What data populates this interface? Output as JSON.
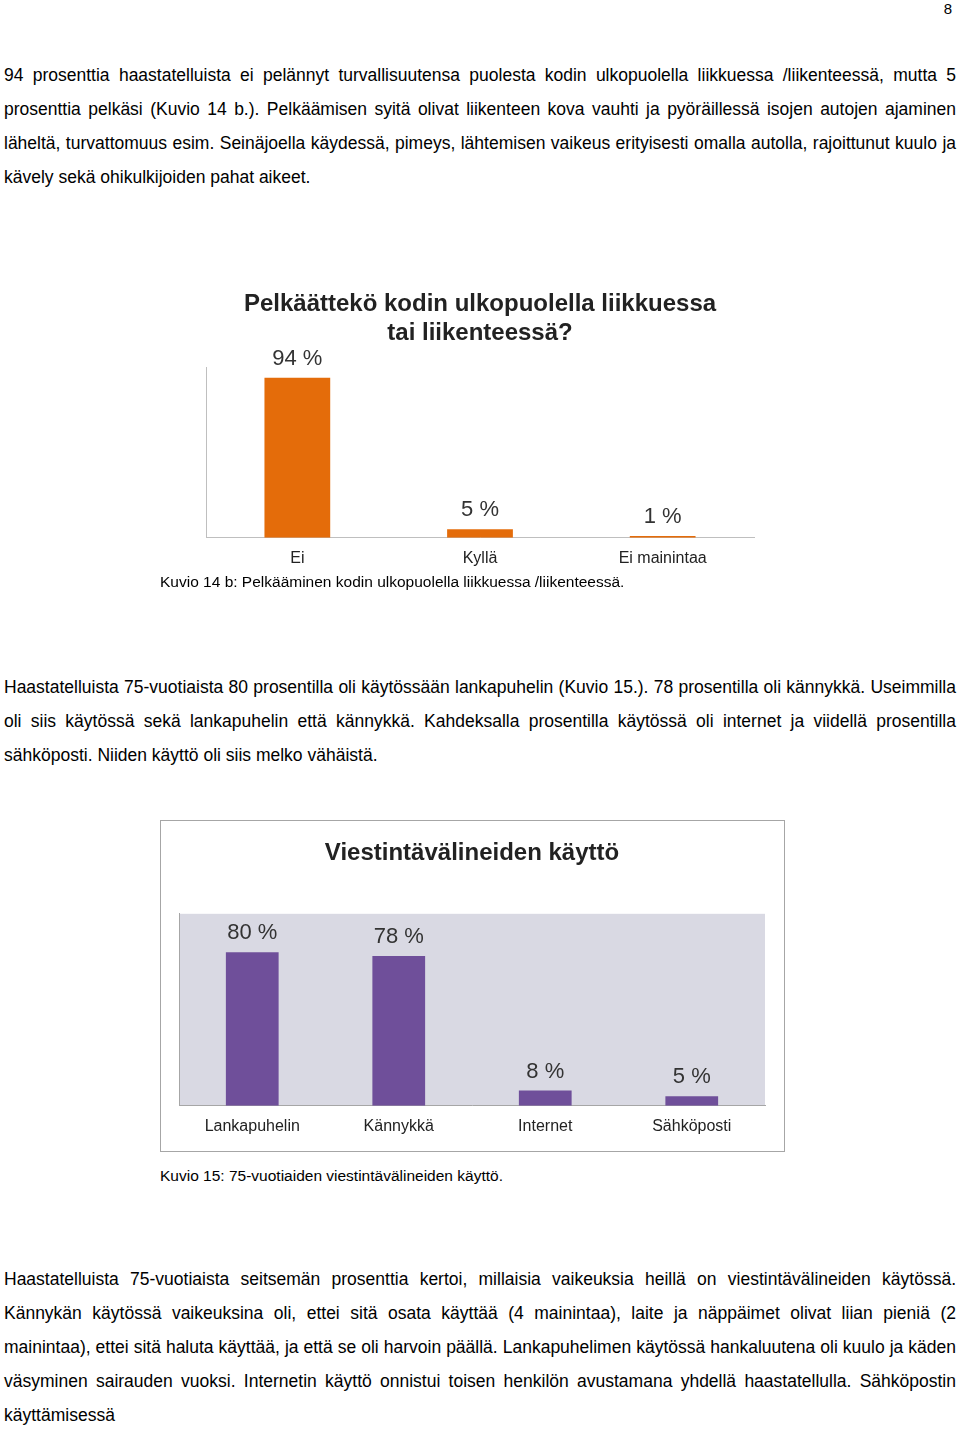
{
  "page_number": 8,
  "paragraphs": [
    "94 prosenttia haastatelluista ei pelännyt turvallisuutensa puolesta kodin ulkopuolella liikkuessa /liikenteessä, mutta 5 prosenttia pelkäsi (Kuvio 14 b.). Pelkäämisen syitä olivat liikenteen kova vauhti ja pyöräillessä isojen autojen ajaminen läheltä, turvattomuus esim. Seinäjoella käydessä, pimeys, lähtemisen vaikeus erityisesti omalla autolla, rajoittunut kuulo ja kävely sekä ohikulkijoiden pahat aikeet.",
    "Haastatelluista 75-vuotiaista 80 prosentilla oli käytössään lankapuhelin (Kuvio 15.). 78 prosentilla oli kännykkä. Useimmilla oli siis käytössä sekä lankapuhelin että kännykkä. Kahdeksalla prosentilla käytössä oli internet ja viidellä prosentilla sähköposti. Niiden käyttö oli siis melko vähäistä.",
    "Haastatelluista 75-vuotiaista seitsemän prosenttia kertoi, millaisia vaikeuksia heillä on viestintävälineiden käytössä. Kännykän käytössä vaikeuksina oli, ettei sitä osata käyttää (4 mainintaa), laite ja näppäimet olivat liian pieniä (2 mainintaa), ettei sitä haluta käyttää, ja että se oli harvoin päällä. Lankapuhelimen käytössä hankaluutena oli kuulo ja käden väsyminen sairauden vuoksi. Internetin käyttö onnistui toisen henkilön avustamana yhdellä haastatellulla. Sähköpostin käyttämisessä"
  ],
  "captions": [
    "Kuvio 14 b: Pelkääminen kodin ulkopuolella liikkuessa /liikenteessä.",
    "Kuvio 15: 75-vuotiaiden viestintävälineiden käyttö."
  ],
  "chart_data": [
    {
      "type": "bar",
      "title": [
        "Pelkäättekö kodin ulkopuolella liikkuessa",
        "tai liikenteessä?"
      ],
      "categories": [
        "Ei",
        "Kyllä",
        "Ei mainintaa"
      ],
      "values": [
        94,
        5,
        1
      ],
      "value_labels": [
        "94 %",
        "5 %",
        "1 %"
      ],
      "data_labels": true,
      "color": "#e46c0a",
      "ylim": [
        0,
        100
      ],
      "grid": false,
      "tick_labels": "x"
    },
    {
      "type": "bar",
      "title": "Viestintävälineiden käyttö",
      "categories": [
        "Lankapuhelin",
        "Kännykkä",
        "Internet",
        "Sähköposti"
      ],
      "values": [
        80,
        78,
        8,
        5
      ],
      "value_labels": [
        "80 %",
        "78 %",
        "8 %",
        "5 %"
      ],
      "data_labels": true,
      "color": "#6f4f9a",
      "ylim": [
        0,
        100
      ],
      "grid": false,
      "tick_labels": "x"
    }
  ]
}
